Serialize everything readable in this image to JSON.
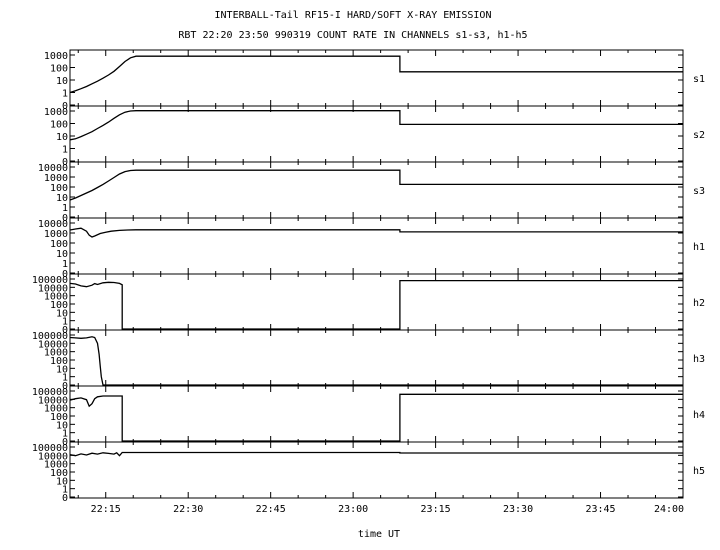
{
  "title_line1": "INTERBALL-Tail RF15-I HARD/SOFT X-RAY EMISSION",
  "title_line2": "RBT 22:20 23:50 990319  COUNT RATE IN CHANNELS s1-s3, h1-h5",
  "chart_data": {
    "type": "line",
    "xlabel": "time UT",
    "x_unit": "minutes after 22:00 UT",
    "xlim": [
      8.5,
      120
    ],
    "x_ticks": [
      15,
      30,
      45,
      60,
      75,
      90,
      105,
      120
    ],
    "x_tick_labels": [
      "22:15",
      "22:30",
      "22:45",
      "23:00",
      "23:15",
      "23:30",
      "23:45",
      "24:00"
    ],
    "y_scale": "log",
    "panels": [
      {
        "name": "s1",
        "y_tick_labels": [
          "1000",
          "100",
          "10",
          "1",
          "0"
        ],
        "top_exp": 3,
        "points": [
          [
            8.5,
            1
          ],
          [
            9.5,
            1.4
          ],
          [
            10.5,
            2
          ],
          [
            11.5,
            3
          ],
          [
            12.5,
            5
          ],
          [
            13.5,
            8
          ],
          [
            14.5,
            14
          ],
          [
            15.5,
            25
          ],
          [
            16.5,
            50
          ],
          [
            17.5,
            120
          ],
          [
            18.5,
            300
          ],
          [
            19.5,
            600
          ],
          [
            20.5,
            800
          ],
          [
            40,
            800
          ],
          [
            60,
            800
          ],
          [
            68.5,
            800
          ],
          [
            68.5,
            45
          ],
          [
            90,
            45
          ],
          [
            120,
            45
          ]
        ]
      },
      {
        "name": "s2",
        "y_tick_labels": [
          "1000",
          "100",
          "10",
          "1",
          "0"
        ],
        "top_exp": 3,
        "points": [
          [
            8.5,
            5
          ],
          [
            9.5,
            6
          ],
          [
            10.5,
            9
          ],
          [
            11.5,
            14
          ],
          [
            12.5,
            22
          ],
          [
            13.5,
            40
          ],
          [
            14.5,
            70
          ],
          [
            15.5,
            130
          ],
          [
            16.5,
            260
          ],
          [
            17.5,
            500
          ],
          [
            18.5,
            800
          ],
          [
            19.5,
            1000
          ],
          [
            20.5,
            1050
          ],
          [
            40,
            1050
          ],
          [
            60,
            1050
          ],
          [
            68.5,
            1050
          ],
          [
            68.5,
            85
          ],
          [
            90,
            85
          ],
          [
            120,
            85
          ]
        ]
      },
      {
        "name": "s3",
        "y_tick_labels": [
          "10000",
          "1000",
          "100",
          "10",
          "1",
          "0"
        ],
        "top_exp": 4,
        "points": [
          [
            8.5,
            5
          ],
          [
            9.5,
            8
          ],
          [
            10.5,
            14
          ],
          [
            11.5,
            25
          ],
          [
            12.5,
            45
          ],
          [
            13.5,
            90
          ],
          [
            14.5,
            180
          ],
          [
            15.5,
            400
          ],
          [
            16.5,
            900
          ],
          [
            17.5,
            2000
          ],
          [
            18.5,
            3500
          ],
          [
            19.5,
            4500
          ],
          [
            20.5,
            4800
          ],
          [
            40,
            4800
          ],
          [
            60,
            4800
          ],
          [
            68.5,
            4800
          ],
          [
            68.5,
            180
          ],
          [
            90,
            180
          ],
          [
            120,
            180
          ]
        ]
      },
      {
        "name": "h1",
        "y_tick_labels": [
          "10000",
          "1000",
          "100",
          "10",
          "1",
          "0"
        ],
        "top_exp": 4,
        "points": [
          [
            8.5,
            2000
          ],
          [
            9.5,
            2500
          ],
          [
            10.5,
            3000
          ],
          [
            11.5,
            1500
          ],
          [
            12,
            600
          ],
          [
            12.5,
            400
          ],
          [
            13,
            500
          ],
          [
            14,
            900
          ],
          [
            15,
            1200
          ],
          [
            16,
            1500
          ],
          [
            17.5,
            1800
          ],
          [
            19,
            2000
          ],
          [
            20.5,
            2100
          ],
          [
            40,
            2100
          ],
          [
            60,
            2100
          ],
          [
            68.5,
            2100
          ],
          [
            68.5,
            1300
          ],
          [
            90,
            1300
          ],
          [
            120,
            1300
          ]
        ]
      },
      {
        "name": "h2",
        "y_tick_labels": [
          "100000",
          "10000",
          "1000",
          "100",
          "10",
          "1",
          "0"
        ],
        "top_exp": 5,
        "points": [
          [
            8.5,
            30000
          ],
          [
            9.5,
            25000
          ],
          [
            10.5,
            15000
          ],
          [
            11.5,
            12000
          ],
          [
            12.5,
            18000
          ],
          [
            13,
            28000
          ],
          [
            13.5,
            22000
          ],
          [
            14.5,
            35000
          ],
          [
            15.5,
            40000
          ],
          [
            16.5,
            38000
          ],
          [
            17.5,
            30000
          ],
          [
            18,
            20000
          ],
          [
            18,
            0.3
          ],
          [
            40,
            0.3
          ],
          [
            68.5,
            0.3
          ],
          [
            68.5,
            65000
          ],
          [
            90,
            65000
          ],
          [
            120,
            65000
          ]
        ]
      },
      {
        "name": "h3",
        "y_tick_labels": [
          "100000",
          "10000",
          "1000",
          "100",
          "10",
          "1",
          "0"
        ],
        "top_exp": 5,
        "points": [
          [
            8.5,
            50000
          ],
          [
            9.5,
            45000
          ],
          [
            10.5,
            40000
          ],
          [
            11.5,
            45000
          ],
          [
            12.5,
            60000
          ],
          [
            13,
            50000
          ],
          [
            13.5,
            10000
          ],
          [
            13.8,
            500
          ],
          [
            14,
            20
          ],
          [
            14.2,
            1
          ],
          [
            14.5,
            0.3
          ],
          [
            40,
            0.3
          ],
          [
            80,
            0.3
          ],
          [
            120,
            0.3
          ]
        ]
      },
      {
        "name": "h4",
        "y_tick_labels": [
          "100000",
          "10000",
          "1000",
          "100",
          "10",
          "1",
          "0"
        ],
        "top_exp": 5,
        "points": [
          [
            8.5,
            8000
          ],
          [
            9.5,
            12000
          ],
          [
            10.5,
            15000
          ],
          [
            11.5,
            9000
          ],
          [
            12,
            1500
          ],
          [
            12.5,
            3000
          ],
          [
            13,
            12000
          ],
          [
            13.5,
            20000
          ],
          [
            14.5,
            25000
          ],
          [
            15.5,
            25000
          ],
          [
            18,
            25000
          ],
          [
            18,
            0.3
          ],
          [
            40,
            0.3
          ],
          [
            68.5,
            0.3
          ],
          [
            68.5,
            40000
          ],
          [
            90,
            40000
          ],
          [
            120,
            40000
          ]
        ]
      },
      {
        "name": "h5",
        "y_tick_labels": [
          "100000",
          "10000",
          "1000",
          "100",
          "10",
          "1",
          "0"
        ],
        "top_exp": 5,
        "points": [
          [
            8.5,
            12000
          ],
          [
            9.5,
            9000
          ],
          [
            10.5,
            15000
          ],
          [
            11.5,
            11000
          ],
          [
            12.5,
            18000
          ],
          [
            13.5,
            14000
          ],
          [
            14.5,
            20000
          ],
          [
            15.5,
            17000
          ],
          [
            16.5,
            14000
          ],
          [
            17,
            20000
          ],
          [
            17.5,
            9000
          ],
          [
            18,
            22000
          ],
          [
            40,
            22000
          ],
          [
            68.5,
            22000
          ],
          [
            68.5,
            19000
          ],
          [
            90,
            19000
          ],
          [
            120,
            19000
          ]
        ]
      }
    ]
  }
}
